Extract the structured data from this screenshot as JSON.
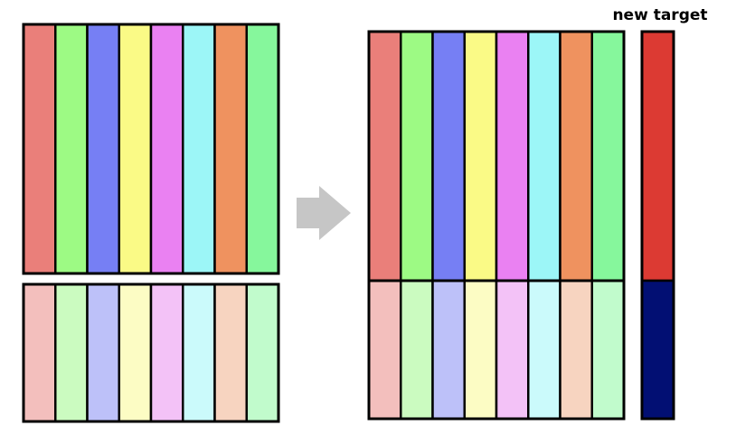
{
  "label": "new target",
  "colors": {
    "strong": [
      "#ea7f7a",
      "#9dfa84",
      "#767ff4",
      "#fafa86",
      "#ea81f2",
      "#9cf6f7",
      "#ef925f",
      "#86f79c"
    ],
    "light": [
      "#f3bfbd",
      "#cbfbc0",
      "#bdc1f9",
      "#fcfcc4",
      "#f3c2f7",
      "#cbfafb",
      "#f7d4c0",
      "#c1fbcc"
    ],
    "target_top": "#dc3a33",
    "target_bottom": "#020f73",
    "arrow": "#c6c6c6",
    "outline": "#000000"
  },
  "icons": {
    "arrow": "right-arrow-icon"
  }
}
